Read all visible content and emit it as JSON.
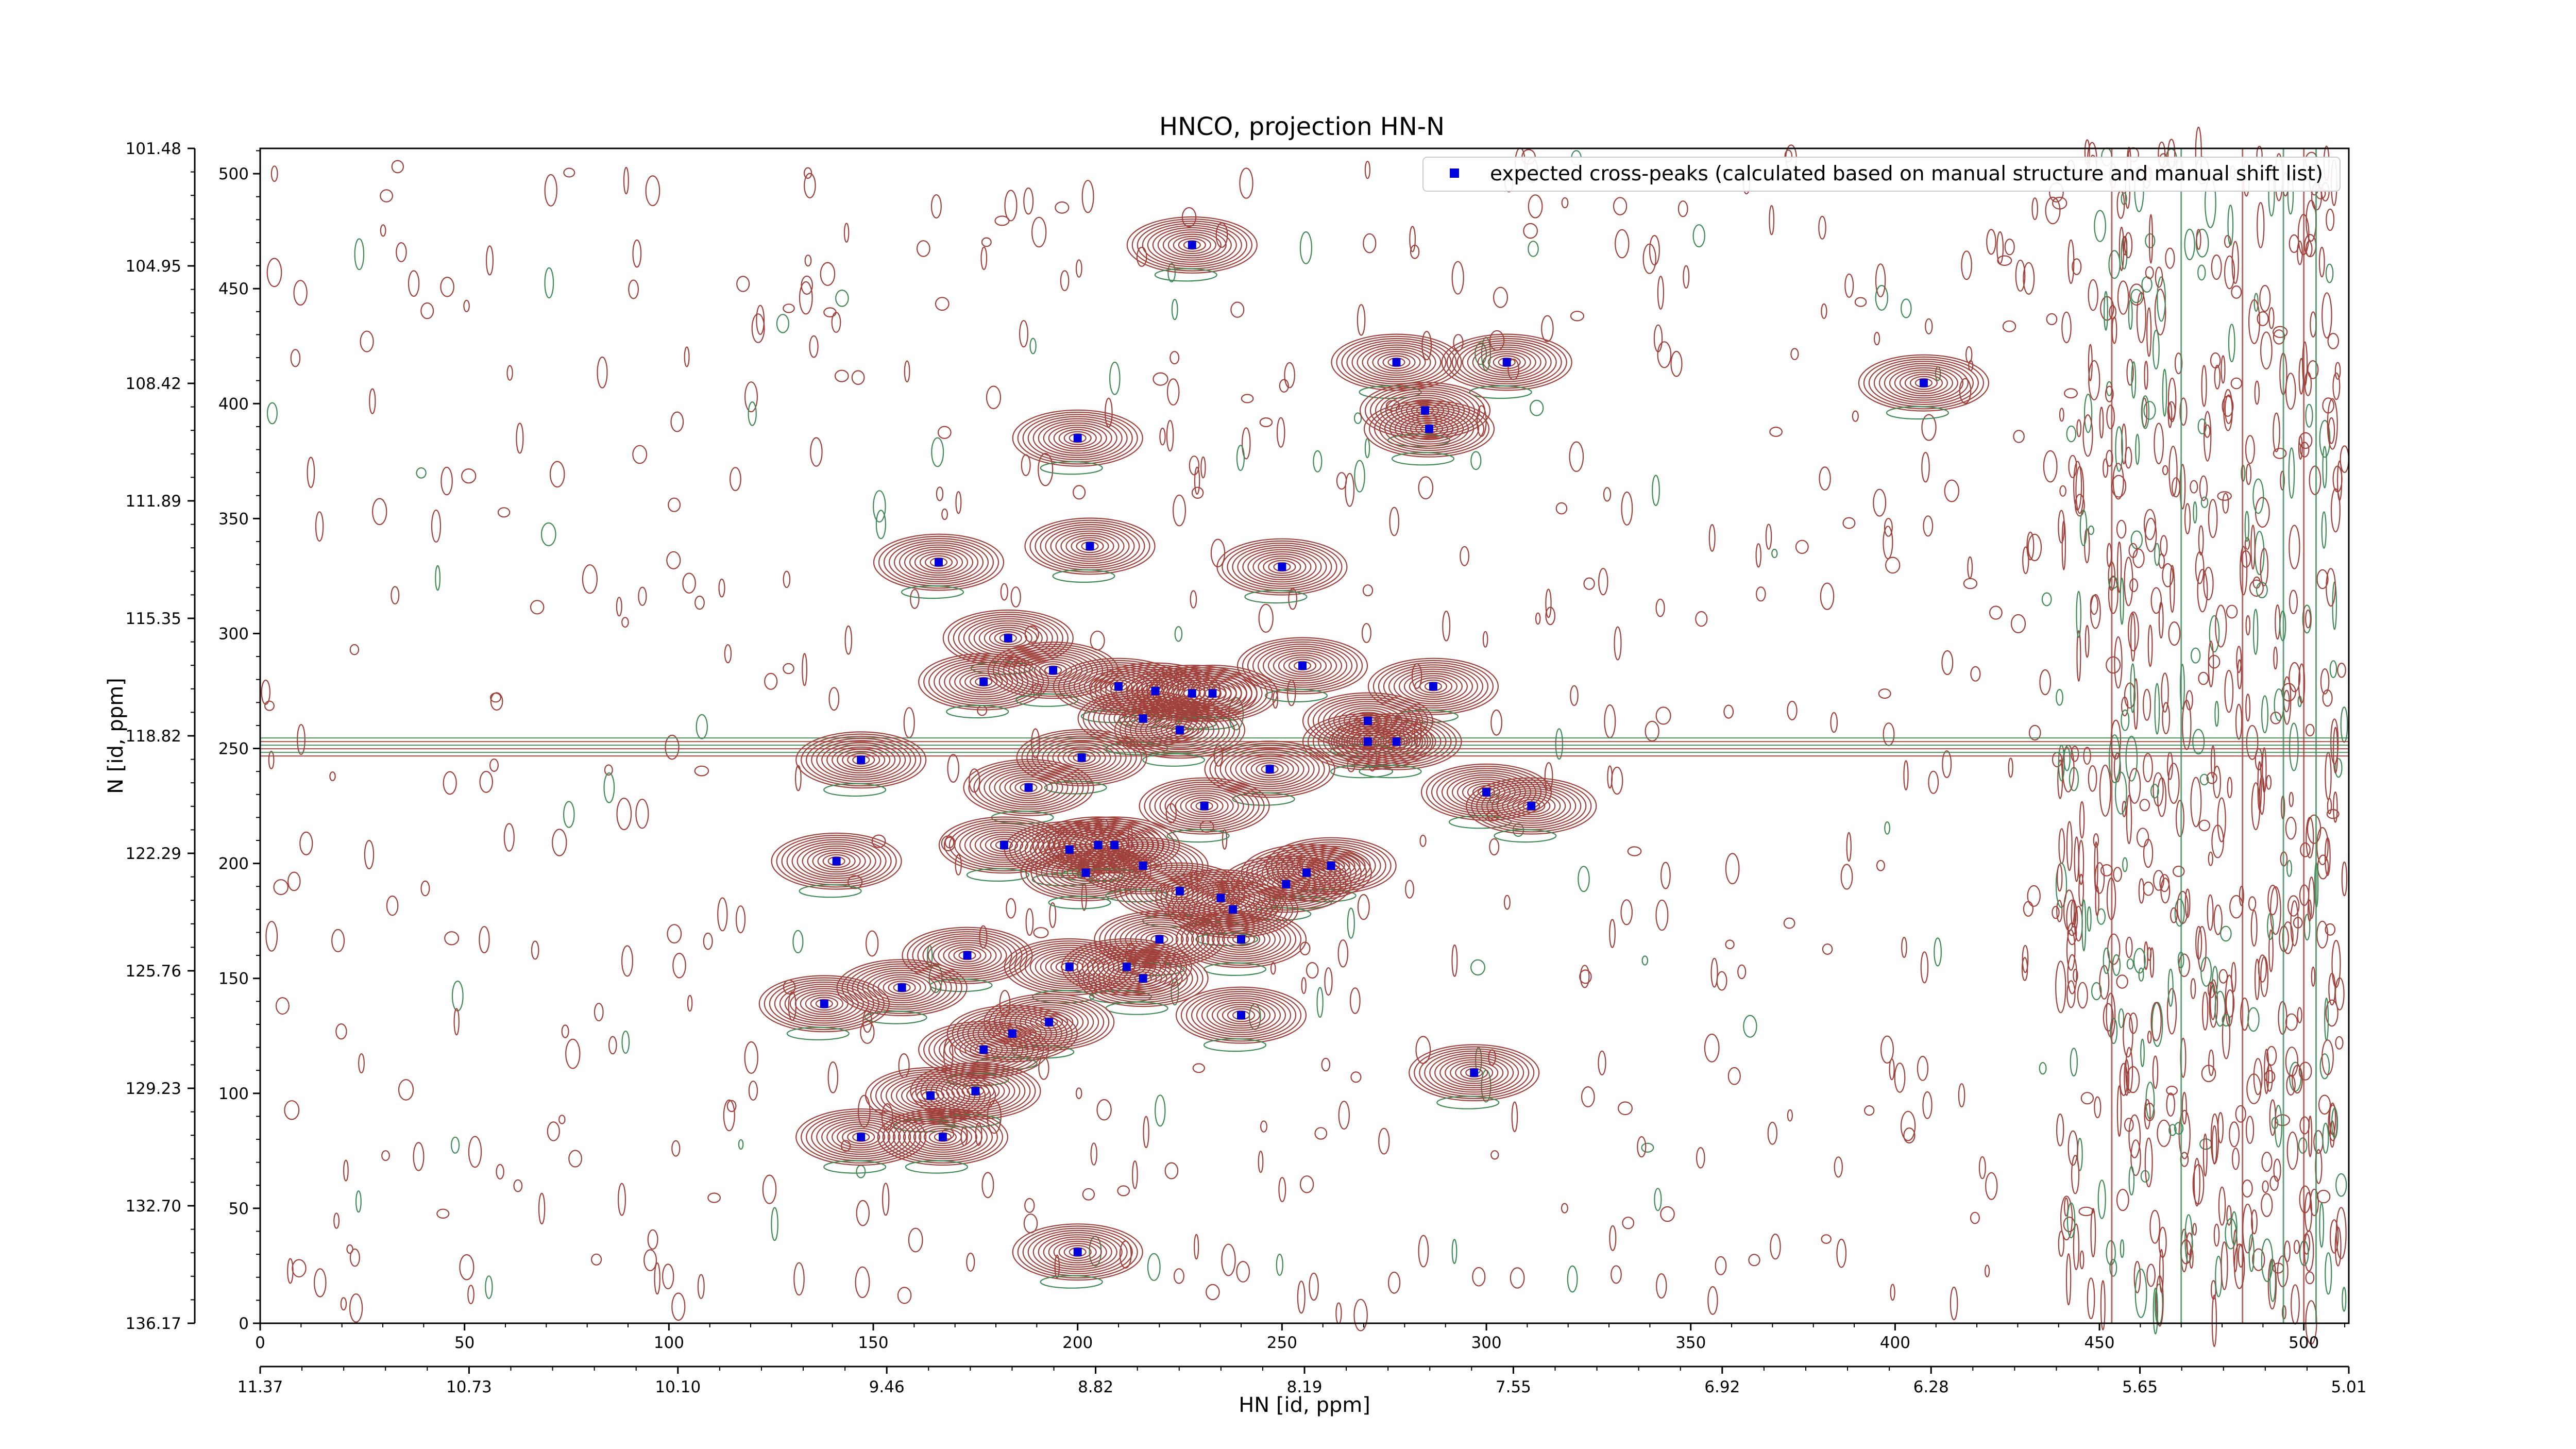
{
  "chart_data": {
    "type": "scatter",
    "title": "HNCO, projection HN-N",
    "xlabel": "HN [id, ppm]",
    "ylabel": "N [id, ppm]",
    "xlim": [
      0,
      511
    ],
    "ylim": [
      0,
      511
    ],
    "x_ticks": [
      0,
      50,
      100,
      150,
      200,
      250,
      300,
      350,
      400,
      450,
      500
    ],
    "y_ticks": [
      0,
      50,
      100,
      150,
      200,
      250,
      300,
      350,
      400,
      450,
      500
    ],
    "x_ppm_ticks": [
      "11.37",
      "10.73",
      "10.10",
      "9.46",
      "8.82",
      "8.19",
      "7.55",
      "6.92",
      "6.28",
      "5.65",
      "5.01"
    ],
    "y_ppm_ticks": [
      "136.17",
      "132.70",
      "129.23",
      "125.76",
      "122.29",
      "118.82",
      "115.35",
      "111.89",
      "108.42",
      "104.95",
      "101.48"
    ],
    "legend": {
      "label": "expected cross-peaks (calculated based on manual structure and manual shift list)",
      "placement": "upper right"
    },
    "colors": {
      "contour_positive": "#a0413c",
      "contour_negative": "#3f8a56",
      "peak_marker": "#0000dd",
      "axis": "#000000"
    },
    "series": [
      {
        "name": "expected cross-peaks (calculated based on manual structure and manual shift list)",
        "points": [
          [
            228,
            469
          ],
          [
            278,
            418
          ],
          [
            305,
            418
          ],
          [
            407,
            409
          ],
          [
            200,
            385
          ],
          [
            285,
            397
          ],
          [
            286,
            389
          ],
          [
            166,
            331
          ],
          [
            203,
            338
          ],
          [
            250,
            329
          ],
          [
            183,
            298
          ],
          [
            177,
            279
          ],
          [
            194,
            284
          ],
          [
            255,
            286
          ],
          [
            210,
            277
          ],
          [
            219,
            275
          ],
          [
            228,
            274
          ],
          [
            233,
            274
          ],
          [
            287,
            277
          ],
          [
            271,
            262
          ],
          [
            271,
            253
          ],
          [
            278,
            253
          ],
          [
            216,
            263
          ],
          [
            225,
            258
          ],
          [
            201,
            246
          ],
          [
            147,
            245
          ],
          [
            247,
            241
          ],
          [
            188,
            233
          ],
          [
            300,
            231
          ],
          [
            231,
            225
          ],
          [
            311,
            225
          ],
          [
            182,
            208
          ],
          [
            198,
            206
          ],
          [
            205,
            208
          ],
          [
            209,
            208
          ],
          [
            141,
            201
          ],
          [
            202,
            196
          ],
          [
            216,
            199
          ],
          [
            262,
            199
          ],
          [
            256,
            196
          ],
          [
            251,
            191
          ],
          [
            225,
            188
          ],
          [
            235,
            185
          ],
          [
            238,
            180
          ],
          [
            220,
            167
          ],
          [
            240,
            167
          ],
          [
            198,
            155
          ],
          [
            173,
            160
          ],
          [
            212,
            155
          ],
          [
            216,
            150
          ],
          [
            157,
            146
          ],
          [
            138,
            139
          ],
          [
            240,
            134
          ],
          [
            193,
            131
          ],
          [
            184,
            126
          ],
          [
            177,
            119
          ],
          [
            297,
            109
          ],
          [
            164,
            99
          ],
          [
            175,
            101
          ],
          [
            147,
            81
          ],
          [
            167,
            81
          ],
          [
            200,
            31
          ]
        ]
      }
    ]
  }
}
